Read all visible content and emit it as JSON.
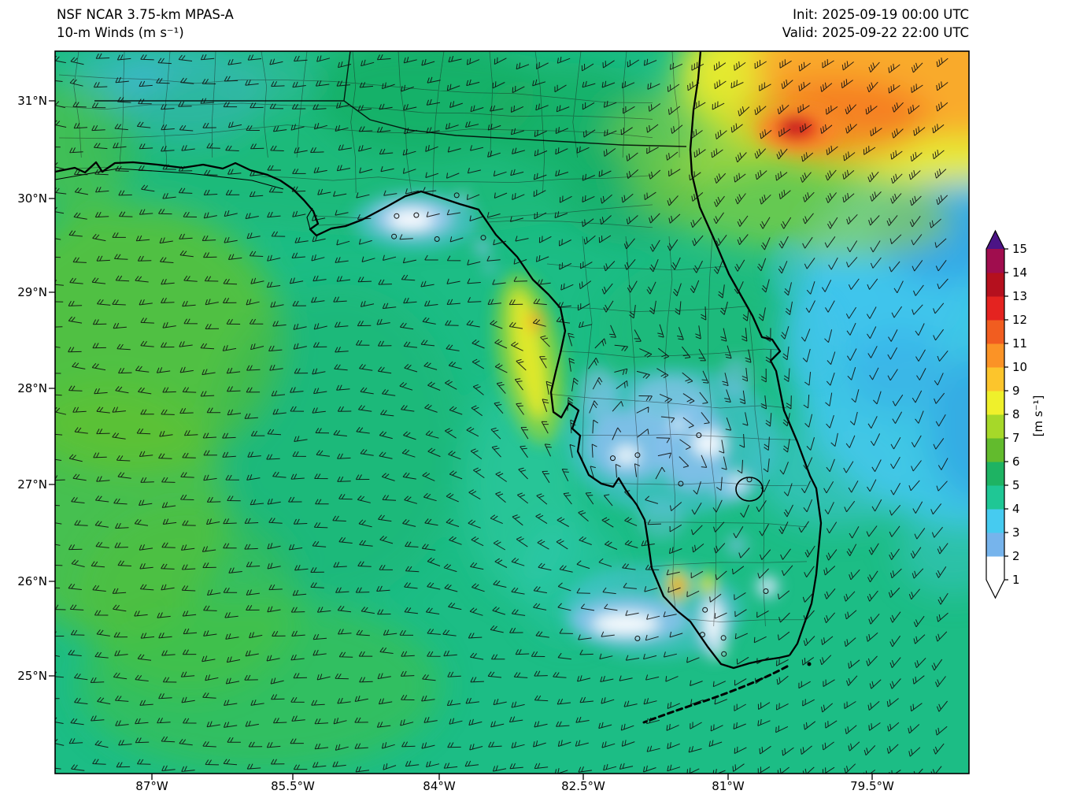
{
  "header": {
    "title": "NSF NCAR 3.75-km MPAS-A",
    "subtitle": "10-m Winds (m s⁻¹)",
    "init": "Init: 2025-09-19 00:00 UTC",
    "valid": "Valid: 2025-09-22 22:00 UTC"
  },
  "axes": {
    "lat_ticks": [
      {
        "label": "31°N"
      },
      {
        "label": "30°N"
      },
      {
        "label": "29°N"
      },
      {
        "label": "28°N"
      },
      {
        "label": "27°N"
      },
      {
        "label": "26°N"
      },
      {
        "label": "25°N"
      }
    ],
    "lon_ticks": [
      {
        "label": "87°W"
      },
      {
        "label": "85.5°W"
      },
      {
        "label": "84°W"
      },
      {
        "label": "82.5°W"
      },
      {
        "label": "81°W"
      },
      {
        "label": "79.5°W"
      }
    ]
  },
  "colorbar": {
    "label": "[m s⁻¹]",
    "ticks": [
      "1",
      "2",
      "3",
      "4",
      "5",
      "6",
      "7",
      "8",
      "9",
      "10",
      "11",
      "12",
      "13",
      "14",
      "15"
    ],
    "colors": [
      "#ffffff",
      "#76b4ec",
      "#46cbf0",
      "#1fc795",
      "#1eb363",
      "#62bb2d",
      "#a6d829",
      "#eff02b",
      "#fcc52c",
      "#fb9326",
      "#f15d20",
      "#e42320",
      "#b5101e",
      "#a00d4e"
    ],
    "extend_low": "#ffffff",
    "extend_high": "#4c1486",
    "outline": "#000000"
  },
  "map": {
    "base_speed_color": "#1cbd85",
    "coast_color": "#000000",
    "barb_color": "#101010"
  },
  "chart_data": {
    "type": "heatmap",
    "title": "NSF NCAR 3.75-km MPAS-A",
    "subtitle": "10-m Winds (m s⁻¹)",
    "init_time": "2025-09-19 00:00 UTC",
    "valid_time": "2025-09-22 22:00 UTC",
    "region": "Florida peninsula, Gulf of Mexico and western Atlantic",
    "lat_ticks": [
      "31°N",
      "30°N",
      "29°N",
      "28°N",
      "27°N",
      "26°N",
      "25°N"
    ],
    "lon_ticks": [
      "87°W",
      "85.5°W",
      "84°W",
      "82.5°W",
      "81°W",
      "79.5°W"
    ],
    "colorbar": {
      "label": "[m s⁻¹]",
      "min": 1,
      "max": 15,
      "tick_step": 1,
      "position": "right"
    },
    "overlay": "wind barbs on regular grid; open circles mark calm (<1 m s⁻¹) points",
    "features": [
      "Strong wind maximum 10-14 m s⁻¹ (orange/red) over the Atlantic off the Georgia / northeast Florida coast, peak ~13 m s⁻¹ near 30.7N 80.7W",
      "Broad 2-4 m s⁻¹ (cyan/blue) region over the western Atlantic east of the Florida peninsula between ~26N and 30N",
      "Calm pockets (<2 m s⁻¹, white) over the central Florida peninsula near Tampa/Orlando and around Lake Okeechobee",
      "Calm pockets (<2 m s⁻¹, white) over southwest Florida near Fort Myers/Naples with small isolated 8-10 m s⁻¹ spots",
      "Narrow 7-9 m s⁻¹ yellow band hugging the Big Bend coast around 28-29.5N",
      "Small calm/light-wind patch on the panhandle coast near Apalachicola/Panama City",
      "Gulf of Mexico mostly 4-6 m s⁻¹ green with 6-7 m s⁻¹ yellow-green along the western map edge",
      "Wind barbs indicate cyclonic (counterclockwise) turning of the flow around the peninsula"
    ]
  }
}
